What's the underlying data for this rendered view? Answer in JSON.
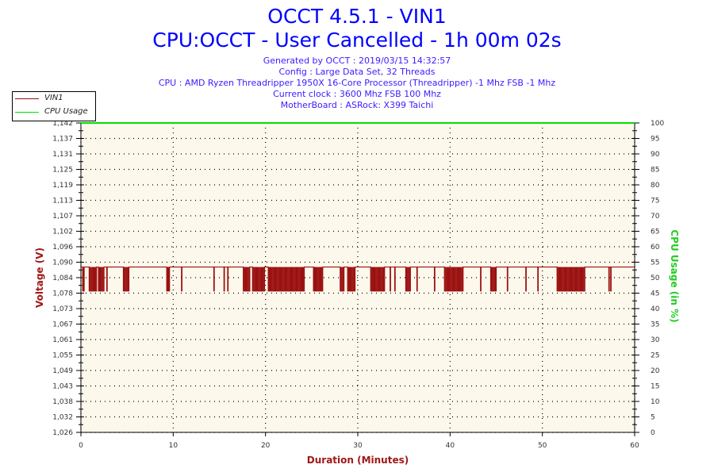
{
  "header": {
    "title": "OCCT 4.5.1 - VIN1",
    "subtitle": "CPU:OCCT - User Cancelled - 1h 00m 02s",
    "info": [
      "Generated by OCCT : 2019/03/15 14:32:57",
      "Config : Large Data Set, 32 Threads",
      "CPU : AMD Ryzen Threadripper 1950X 16-Core Processor (Threadripper) -1 Mhz FSB -1 Mhz",
      "Current clock : 3600 Mhz FSB 100 Mhz",
      "MotherBoard : ASRock: X399 Taichi"
    ]
  },
  "chart_data": {
    "type": "line",
    "xlabel": "Duration (Minutes)",
    "ylabel": "Voltage (V)",
    "y2label": "CPU Usage (in %)",
    "xlim": [
      0,
      60
    ],
    "ylim": [
      1.026,
      1.142
    ],
    "y2lim": [
      0,
      100
    ],
    "xticks": [
      "0",
      "10",
      "20",
      "30",
      "40",
      "50",
      "60"
    ],
    "yticks": [
      "1,026",
      "1,032",
      "1,038",
      "1,043",
      "1,049",
      "1,055",
      "1,061",
      "1,067",
      "1,073",
      "1,078",
      "1,084",
      "1,090",
      "1,096",
      "1,102",
      "1,107",
      "1,113",
      "1,119",
      "1,125",
      "1,131",
      "1,137",
      "1,142"
    ],
    "y2ticks": [
      "0",
      "5",
      "10",
      "15",
      "20",
      "25",
      "30",
      "35",
      "40",
      "45",
      "50",
      "55",
      "60",
      "65",
      "70",
      "75",
      "80",
      "85",
      "90",
      "95",
      "100"
    ],
    "grid": true,
    "legend": "top-left",
    "series": [
      {
        "name": "VIN1",
        "axis": "left",
        "color": "#9b1111",
        "baseline": 1.088,
        "low": 1.079,
        "low_intervals_minutes": [
          [
            0.2,
            0.35
          ],
          [
            0.9,
            1.7
          ],
          [
            1.9,
            2.5
          ],
          [
            2.8,
            2.85
          ],
          [
            4.6,
            5.2
          ],
          [
            9.3,
            9.6
          ],
          [
            10.9,
            10.95
          ],
          [
            14.4,
            14.45
          ],
          [
            15.5,
            15.55
          ],
          [
            15.9,
            15.95
          ],
          [
            17.6,
            18.3
          ],
          [
            18.6,
            19.9
          ],
          [
            20.3,
            24.2
          ],
          [
            25.2,
            26.2
          ],
          [
            28.1,
            28.5
          ],
          [
            28.9,
            29.7
          ],
          [
            31.4,
            32.9
          ],
          [
            33.5,
            33.55
          ],
          [
            34.0,
            34.05
          ],
          [
            35.2,
            35.7
          ],
          [
            36.4,
            36.45
          ],
          [
            38.3,
            38.35
          ],
          [
            39.4,
            41.4
          ],
          [
            43.3,
            43.35
          ],
          [
            44.4,
            45.0
          ],
          [
            46.2,
            46.25
          ],
          [
            48.2,
            48.25
          ],
          [
            49.5,
            49.55
          ],
          [
            51.6,
            54.6
          ],
          [
            57.2,
            57.25
          ],
          [
            57.4,
            57.45
          ]
        ]
      },
      {
        "name": "CPU Usage",
        "axis": "right",
        "color": "#00e000",
        "constant": 100
      }
    ]
  },
  "colors": {
    "plot_bg": "#fdf8ec",
    "axis_label": "#a01818",
    "y2_label": "#22cc22"
  }
}
